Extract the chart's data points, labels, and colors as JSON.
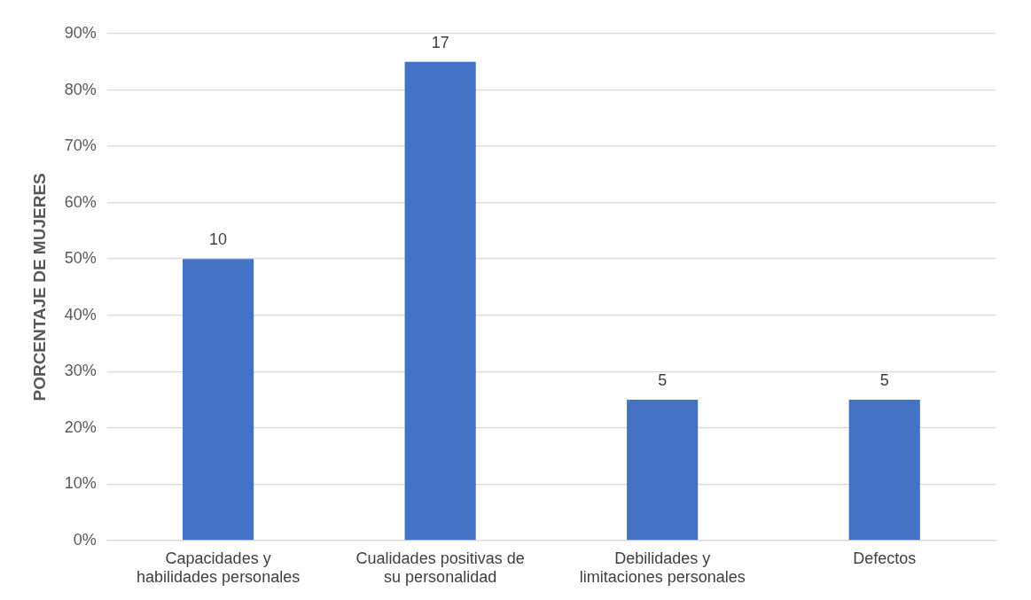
{
  "chart_data": {
    "type": "bar",
    "ylabel": "PORCENTAJE DE MUJERES",
    "categories": [
      "Capacidades y habilidades personales",
      "Cualidades positivas de su personalidad",
      "Debilidades y limitaciones personales",
      "Defectos"
    ],
    "values": [
      50,
      85,
      25,
      25
    ],
    "color": "#4472c4",
    "annotations": [
      {
        "text": "10",
        "x": "Capacidades y habilidades personales",
        "y": 50
      },
      {
        "text": "17",
        "x": "Cualidades positivas de su personalidad",
        "y": 85
      },
      {
        "text": "5",
        "x": "Debilidades y limitaciones personales",
        "y": 25
      },
      {
        "text": "5",
        "x": "Defectos",
        "y": 25
      }
    ],
    "ylim": [
      0,
      90
    ],
    "yticks": [
      {
        "value": 0,
        "label": "0%"
      },
      {
        "value": 10,
        "label": "10%"
      },
      {
        "value": 20,
        "label": "20%"
      },
      {
        "value": 30,
        "label": "30%"
      },
      {
        "value": 40,
        "label": "40%"
      },
      {
        "value": 50,
        "label": "50%"
      },
      {
        "value": 60,
        "label": "60%"
      },
      {
        "value": 70,
        "label": "70%"
      },
      {
        "value": 80,
        "label": "80%"
      },
      {
        "value": 90,
        "label": "90%"
      }
    ],
    "grid": "y",
    "legend": false
  }
}
